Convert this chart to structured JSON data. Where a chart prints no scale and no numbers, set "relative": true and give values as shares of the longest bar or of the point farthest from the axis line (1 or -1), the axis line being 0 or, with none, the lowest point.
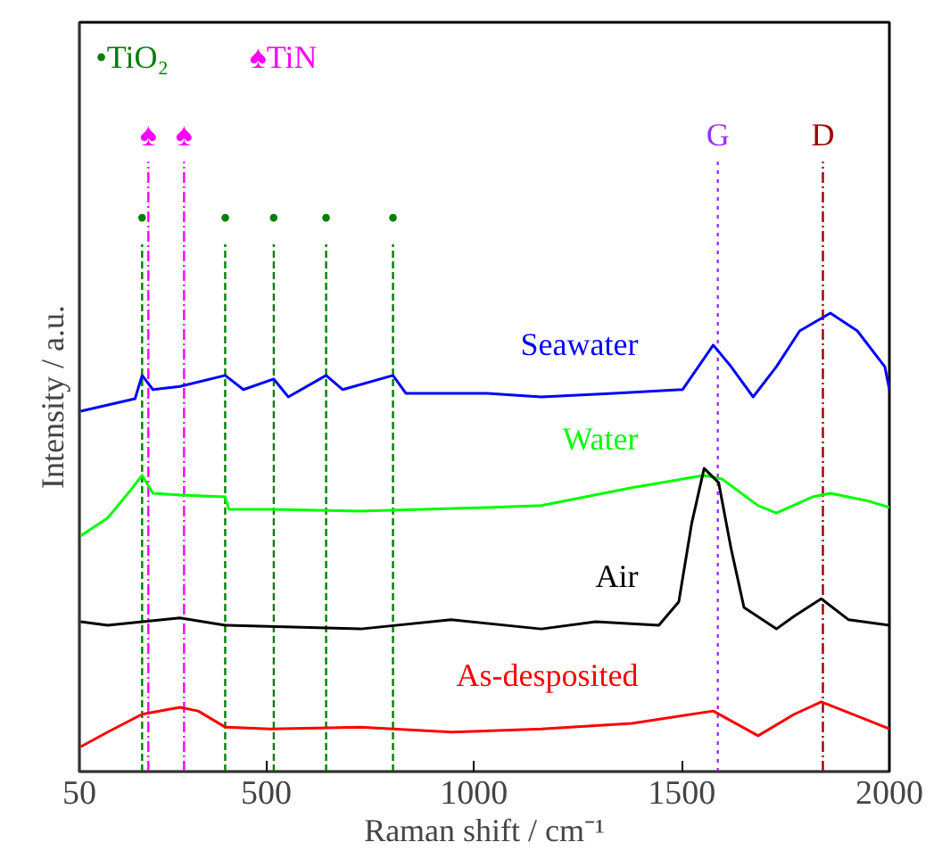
{
  "chart_data": {
    "type": "line",
    "relative": true,
    "xlabel": "Raman shift / cm⁻¹",
    "ylabel": "Intensity / a.u.",
    "xlim": [
      50,
      2000
    ],
    "xticks": [
      50,
      500,
      1000,
      1500,
      2000
    ],
    "tick_labels": "x",
    "grid": false,
    "series": [
      {
        "name": "Seawater",
        "color": "#0000ff",
        "x": [
          53,
          184,
          201,
          227,
          292,
          401,
          445,
          518,
          553,
          644,
          684,
          805,
          836,
          1032,
          1162,
          1336,
          1502,
          1576,
          1619,
          1672,
          1728,
          1784,
          1858,
          1923,
          1989,
          2000
        ],
        "values": [
          0.786,
          0.813,
          0.864,
          0.833,
          0.84,
          0.864,
          0.833,
          0.856,
          0.817,
          0.864,
          0.833,
          0.864,
          0.825,
          0.825,
          0.817,
          0.825,
          0.833,
          0.93,
          0.883,
          0.817,
          0.883,
          0.961,
          1.0,
          0.961,
          0.883,
          0.833
        ]
      },
      {
        "name": "Water",
        "color": "#00ff00",
        "x": [
          53,
          118,
          171,
          201,
          227,
          292,
          401,
          410,
          510,
          727,
          1032,
          1162,
          1380,
          1554,
          1597,
          1684,
          1728,
          1815,
          1858,
          1945,
          2000
        ],
        "values": [
          0.514,
          0.553,
          0.611,
          0.646,
          0.607,
          0.603,
          0.599,
          0.572,
          0.572,
          0.568,
          0.576,
          0.58,
          0.619,
          0.646,
          0.638,
          0.58,
          0.564,
          0.599,
          0.607,
          0.591,
          0.576
        ]
      },
      {
        "name": "Air",
        "color": "#000000",
        "x": [
          53,
          118,
          292,
          401,
          727,
          945,
          1162,
          1293,
          1445,
          1493,
          1524,
          1554,
          1589,
          1619,
          1650,
          1728,
          1771,
          1836,
          1902,
          2000
        ],
        "values": [
          0.327,
          0.319,
          0.335,
          0.319,
          0.311,
          0.331,
          0.311,
          0.327,
          0.319,
          0.37,
          0.541,
          0.661,
          0.63,
          0.486,
          0.358,
          0.311,
          0.339,
          0.377,
          0.331,
          0.319
        ]
      },
      {
        "name": "As-desposited",
        "color": "#ff0000",
        "x": [
          53,
          118,
          201,
          292,
          336,
          401,
          510,
          727,
          945,
          1162,
          1380,
          1576,
          1684,
          1771,
          1836,
          1945,
          2000
        ],
        "values": [
          0.054,
          0.086,
          0.125,
          0.14,
          0.132,
          0.097,
          0.093,
          0.097,
          0.086,
          0.093,
          0.105,
          0.132,
          0.078,
          0.125,
          0.152,
          0.113,
          0.093
        ]
      }
    ],
    "ref_lines": [
      {
        "axis": "x",
        "value": 201,
        "label": "•",
        "color": "#008000",
        "line_style": "dashed"
      },
      {
        "axis": "x",
        "value": 401,
        "label": "•",
        "color": "#008000",
        "line_style": "dashed"
      },
      {
        "axis": "x",
        "value": 518,
        "label": "•",
        "color": "#008000",
        "line_style": "dashed"
      },
      {
        "axis": "x",
        "value": 644,
        "label": "•",
        "color": "#008000",
        "line_style": "dashed"
      },
      {
        "axis": "x",
        "value": 805,
        "label": "•",
        "color": "#008000",
        "line_style": "dashed"
      },
      {
        "axis": "x",
        "value": 216,
        "label": "♠",
        "color": "#ff00ff",
        "line_style": "dashdot"
      },
      {
        "axis": "x",
        "value": 302,
        "label": "♠",
        "color": "#ff00ff",
        "line_style": "dashdot"
      },
      {
        "axis": "x",
        "value": 1587,
        "label": "G",
        "color": "#9933ff",
        "line_style": "dotted"
      },
      {
        "axis": "x",
        "value": 1840,
        "label": "D",
        "color": "#990000",
        "line_style": "dashdot"
      }
    ],
    "annotations": [
      "•TiO₂",
      "♠TiN"
    ]
  }
}
